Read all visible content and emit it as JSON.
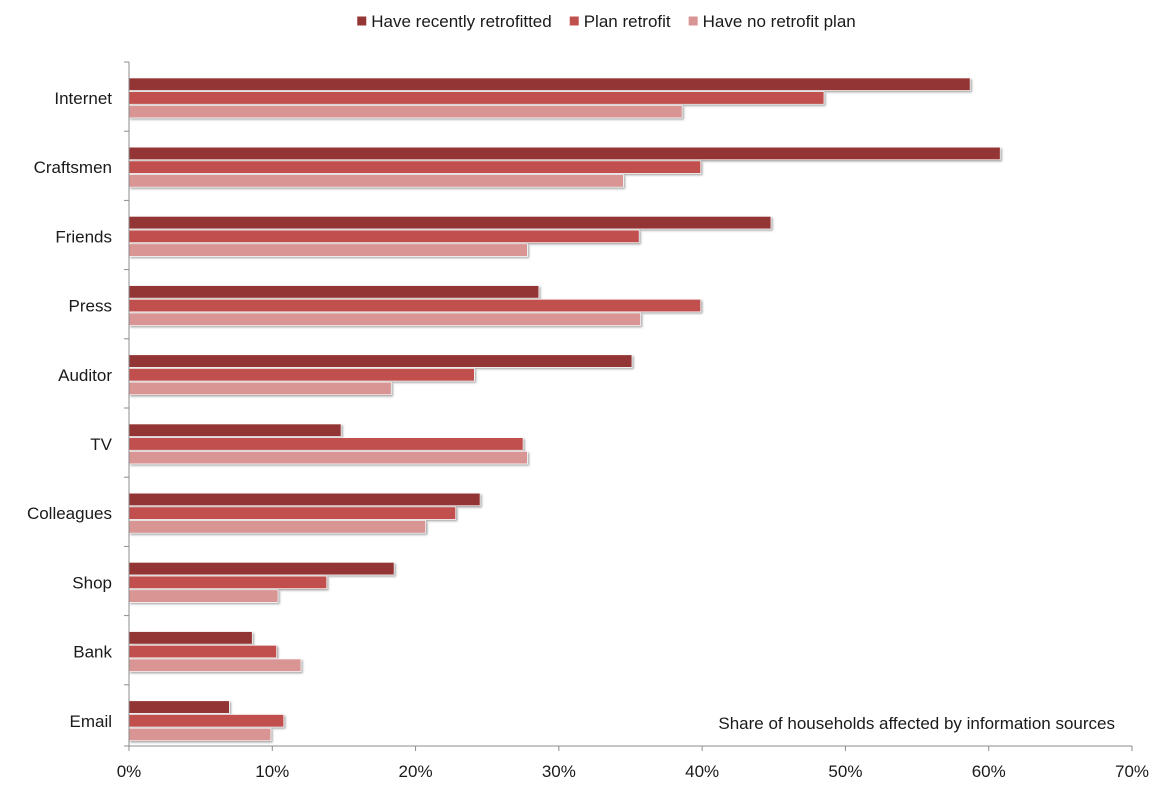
{
  "chart_data": {
    "type": "bar",
    "orientation": "horizontal",
    "categories": [
      "Internet",
      "Craftsmen",
      "Friends",
      "Press",
      "Auditor",
      "TV",
      "Colleagues",
      "Shop",
      "Bank",
      "Email"
    ],
    "series": [
      {
        "name": "Have recently retrofitted",
        "color": "#943634",
        "values": [
          58.7,
          60.8,
          44.8,
          28.6,
          35.1,
          14.8,
          24.5,
          18.5,
          8.6,
          7.0
        ]
      },
      {
        "name": "Plan retrofit",
        "color": "#c0504d",
        "values": [
          48.5,
          39.9,
          35.6,
          39.9,
          24.1,
          27.5,
          22.8,
          13.8,
          10.3,
          10.8
        ]
      },
      {
        "name": "Have no retrofit plan",
        "color": "#d99594",
        "values": [
          38.6,
          34.5,
          27.8,
          35.7,
          18.3,
          27.8,
          20.7,
          10.4,
          12.0,
          9.9
        ]
      }
    ],
    "x_ticks": [
      "0%",
      "10%",
      "20%",
      "30%",
      "40%",
      "50%",
      "60%",
      "70%"
    ],
    "xlim": [
      0,
      70
    ],
    "annotation": "Share of households affected by information sources",
    "legend_position": "top",
    "grid": false
  }
}
